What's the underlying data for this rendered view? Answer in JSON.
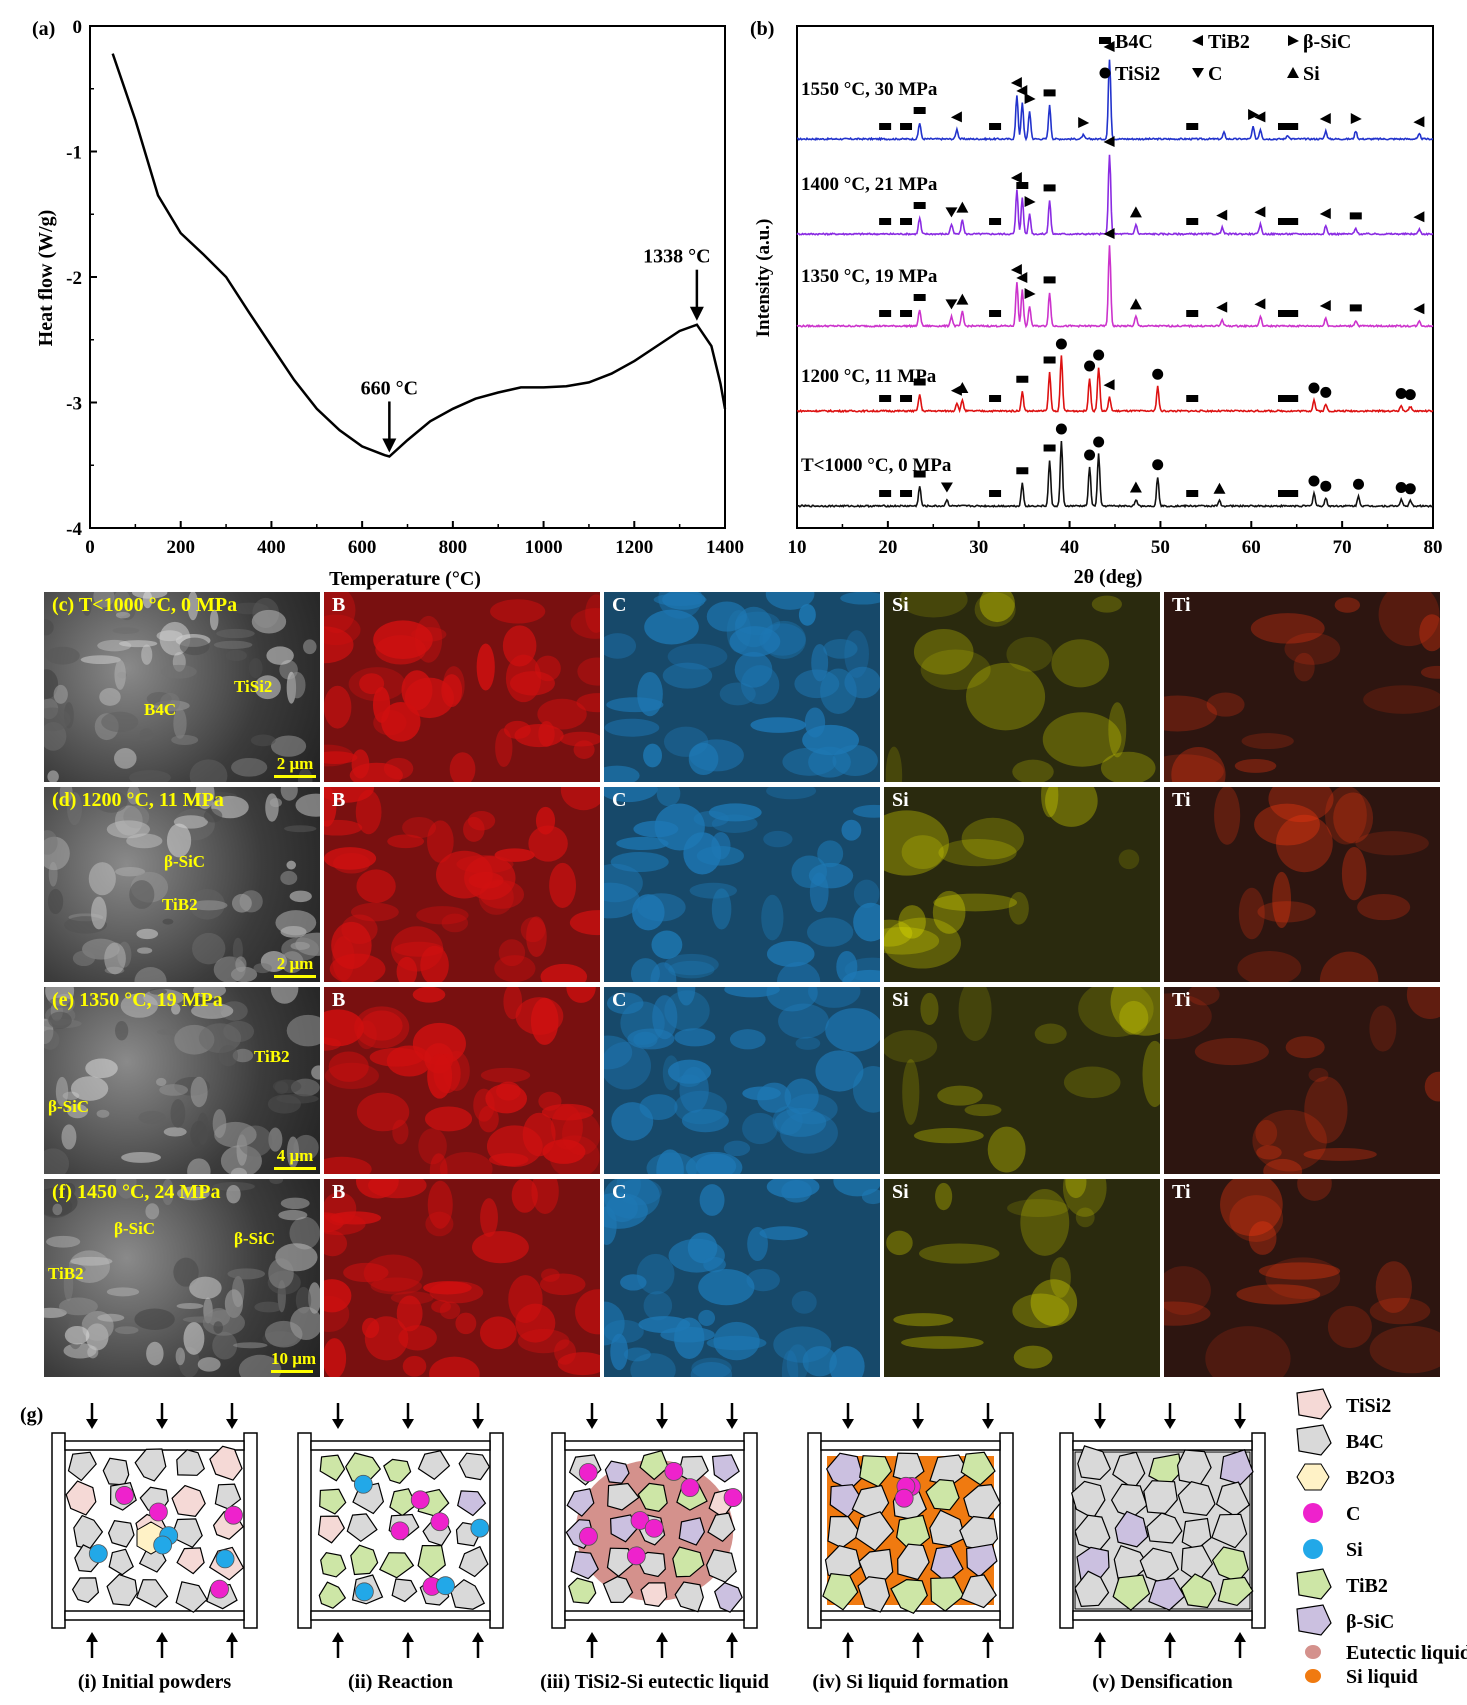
{
  "panel_a": {
    "label": "(a)",
    "xlabel": "Temperature (°C)",
    "ylabel": "Heat flow (W/g)",
    "x_ticks": [
      "0",
      "200",
      "400",
      "600",
      "800",
      "1000",
      "1200",
      "1400"
    ],
    "y_ticks": [
      "0",
      "-1",
      "-2",
      "-3",
      "-4"
    ],
    "annotations": [
      "660 °C",
      "1338 °C"
    ]
  },
  "panel_b": {
    "label": "(b)",
    "xlabel": "2θ (deg)",
    "ylabel": "Intensity (a.u.)",
    "x_ticks": [
      "10",
      "20",
      "30",
      "40",
      "50",
      "60",
      "70",
      "80"
    ],
    "legend": [
      "B4C",
      "TiB2",
      "β-SiC",
      "TiSi2",
      "C",
      "Si"
    ],
    "curves": [
      "1550 °C, 30 MPa",
      "1400 °C, 21 MPa",
      "1350 °C, 19 MPa",
      "1200 °C, 11 MPa",
      "T<1000 °C, 0 MPa"
    ]
  },
  "chart_data": [
    {
      "type": "line",
      "xlabel": "Temperature (°C)",
      "ylabel": "Heat flow (W/g)",
      "xlim": [
        0,
        1400
      ],
      "ylim": [
        -4,
        0
      ],
      "series": [
        {
          "x": [
            50,
            100,
            150,
            200,
            250,
            300,
            350,
            400,
            450,
            500,
            550,
            600,
            650,
            660,
            700,
            750,
            800,
            850,
            900,
            950,
            1000,
            1050,
            1100,
            1150,
            1200,
            1250,
            1300,
            1338,
            1370,
            1390,
            1400
          ],
          "y": [
            -0.22,
            -0.75,
            -1.35,
            -1.65,
            -1.82,
            -2.0,
            -2.28,
            -2.55,
            -2.82,
            -3.05,
            -3.22,
            -3.35,
            -3.42,
            -3.43,
            -3.3,
            -3.15,
            -3.05,
            -2.97,
            -2.92,
            -2.88,
            -2.88,
            -2.87,
            -2.84,
            -2.77,
            -2.67,
            -2.55,
            -2.43,
            -2.38,
            -2.55,
            -2.85,
            -3.05
          ]
        }
      ],
      "annotations": [
        {
          "text": "660 °C",
          "x": 660
        },
        {
          "text": "1338 °C",
          "x": 1338
        }
      ]
    },
    {
      "type": "line",
      "xlabel": "2θ (deg)",
      "ylabel": "Intensity (a.u.)",
      "xlim": [
        10,
        80
      ],
      "series": [
        {
          "name": "1550 °C, 30 MPa",
          "color": "#2233cc",
          "peaks": [
            [
              23.5,
              0.2
            ],
            [
              27.6,
              0.12
            ],
            [
              34.2,
              0.55
            ],
            [
              34.8,
              0.45
            ],
            [
              35.6,
              0.35
            ],
            [
              37.8,
              0.42
            ],
            [
              41.5,
              0.05
            ],
            [
              44.4,
              1.0
            ],
            [
              57,
              0.08
            ],
            [
              60.2,
              0.15
            ],
            [
              61,
              0.12
            ],
            [
              64,
              0.05
            ],
            [
              68.2,
              0.1
            ],
            [
              71.5,
              0.1
            ],
            [
              78.5,
              0.06
            ]
          ]
        },
        {
          "name": "1400 °C, 21 MPa",
          "color": "#8a2be2",
          "peaks": [
            [
              23.5,
              0.2
            ],
            [
              27,
              0.12
            ],
            [
              28.2,
              0.18
            ],
            [
              34.2,
              0.55
            ],
            [
              34.8,
              0.45
            ],
            [
              35.6,
              0.25
            ],
            [
              37.8,
              0.42
            ],
            [
              44.4,
              1.0
            ],
            [
              47.3,
              0.12
            ],
            [
              56.8,
              0.08
            ],
            [
              61,
              0.12
            ],
            [
              68.2,
              0.1
            ],
            [
              71.5,
              0.07
            ],
            [
              78.5,
              0.06
            ]
          ]
        },
        {
          "name": "1350 °C, 19 MPa",
          "color": "#cc33cc",
          "peaks": [
            [
              23.5,
              0.2
            ],
            [
              27,
              0.12
            ],
            [
              28.2,
              0.18
            ],
            [
              34.2,
              0.55
            ],
            [
              34.8,
              0.45
            ],
            [
              35.6,
              0.25
            ],
            [
              37.8,
              0.42
            ],
            [
              44.4,
              1.0
            ],
            [
              47.3,
              0.12
            ],
            [
              56.8,
              0.08
            ],
            [
              61,
              0.12
            ],
            [
              68.2,
              0.1
            ],
            [
              71.5,
              0.07
            ],
            [
              78.5,
              0.06
            ]
          ]
        },
        {
          "name": "1200 °C, 11 MPa",
          "color": "#dd1111",
          "peaks": [
            [
              23.5,
              0.3
            ],
            [
              27.6,
              0.15
            ],
            [
              28.2,
              0.2
            ],
            [
              34.8,
              0.35
            ],
            [
              37.8,
              0.7
            ],
            [
              39.1,
              1.0
            ],
            [
              42.2,
              0.6
            ],
            [
              43.2,
              0.8
            ],
            [
              44.4,
              0.25
            ],
            [
              49.7,
              0.45
            ],
            [
              66.9,
              0.2
            ],
            [
              68.2,
              0.12
            ],
            [
              76.5,
              0.1
            ],
            [
              77.5,
              0.08
            ]
          ]
        },
        {
          "name": "T<1000 °C, 0 MPa",
          "color": "#111111",
          "peaks": [
            [
              23.5,
              0.3
            ],
            [
              26.5,
              0.1
            ],
            [
              34.8,
              0.35
            ],
            [
              37.8,
              0.7
            ],
            [
              39.1,
              1.0
            ],
            [
              42.2,
              0.6
            ],
            [
              43.2,
              0.8
            ],
            [
              47.3,
              0.1
            ],
            [
              49.7,
              0.45
            ],
            [
              56.5,
              0.08
            ],
            [
              66.9,
              0.2
            ],
            [
              68.2,
              0.12
            ],
            [
              71.8,
              0.15
            ],
            [
              76.5,
              0.1
            ],
            [
              77.5,
              0.08
            ]
          ]
        }
      ]
    }
  ],
  "grid": {
    "rows": [
      {
        "label": "(c) T<1000 °C, 0 MPa",
        "scale": "2 μm",
        "annotations": [
          "B4C",
          "TiSi2"
        ]
      },
      {
        "label": "(d) 1200 °C, 11 MPa",
        "scale": "2 μm",
        "annotations": [
          "β-SiC",
          "TiB2"
        ]
      },
      {
        "label": "(e) 1350 °C, 19 MPa",
        "scale": "4 μm",
        "annotations": [
          "TiB2",
          "β-SiC"
        ]
      },
      {
        "label": "(f) 1450 °C, 24 MPa",
        "scale": "10 μm",
        "annotations": [
          "β-SiC",
          "β-SiC",
          "TiB2"
        ]
      }
    ],
    "elements": [
      "B",
      "C",
      "Si",
      "Ti"
    ],
    "element_colors": {
      "B": "#d01010",
      "C": "#1e78b4",
      "Si": "#e6e600",
      "Ti": "#ff3a10"
    }
  },
  "panel_g": {
    "label": "(g)",
    "stages": [
      "(i) Initial powders",
      "(ii) Reaction",
      "(iii) TiSi2-Si eutectic liquid",
      "(iv) Si liquid formation",
      "(v) Densification"
    ],
    "legend": [
      "TiSi2",
      "B4C",
      "B2O3",
      "C",
      "Si",
      "TiB2",
      "β-SiC",
      "Eutectic liquid",
      "Si liquid"
    ]
  }
}
